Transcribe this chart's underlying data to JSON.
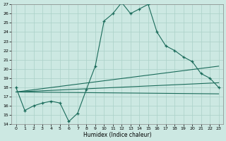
{
  "xlabel": "Humidex (Indice chaleur)",
  "xlim": [
    -0.5,
    23.5
  ],
  "ylim": [
    14,
    27
  ],
  "yticks": [
    14,
    15,
    16,
    17,
    18,
    19,
    20,
    21,
    22,
    23,
    24,
    25,
    26,
    27
  ],
  "xticks": [
    0,
    1,
    2,
    3,
    4,
    5,
    6,
    7,
    8,
    9,
    10,
    11,
    12,
    13,
    14,
    15,
    16,
    17,
    18,
    19,
    20,
    21,
    22,
    23
  ],
  "bg_color": "#cce8e2",
  "grid_color": "#aad0c8",
  "line_color": "#1a6b5a",
  "line1_x": [
    0,
    1,
    2,
    3,
    4,
    5,
    6,
    7,
    8,
    9,
    10,
    11,
    12,
    13,
    14,
    15,
    16,
    17,
    18,
    19,
    20,
    21,
    22,
    23
  ],
  "line1_y": [
    18.0,
    15.5,
    16.0,
    16.3,
    16.5,
    16.3,
    14.3,
    15.2,
    17.8,
    20.3,
    25.2,
    26.0,
    27.2,
    26.0,
    26.5,
    27.0,
    24.0,
    22.5,
    22.0,
    21.3,
    20.8,
    19.5,
    19.0,
    18.0
  ],
  "line3_x": [
    0,
    23
  ],
  "line3_y": [
    17.5,
    20.3
  ],
  "line4_x": [
    0,
    23
  ],
  "line4_y": [
    17.5,
    18.5
  ],
  "line5_x": [
    0,
    23
  ],
  "line5_y": [
    17.5,
    17.3
  ]
}
